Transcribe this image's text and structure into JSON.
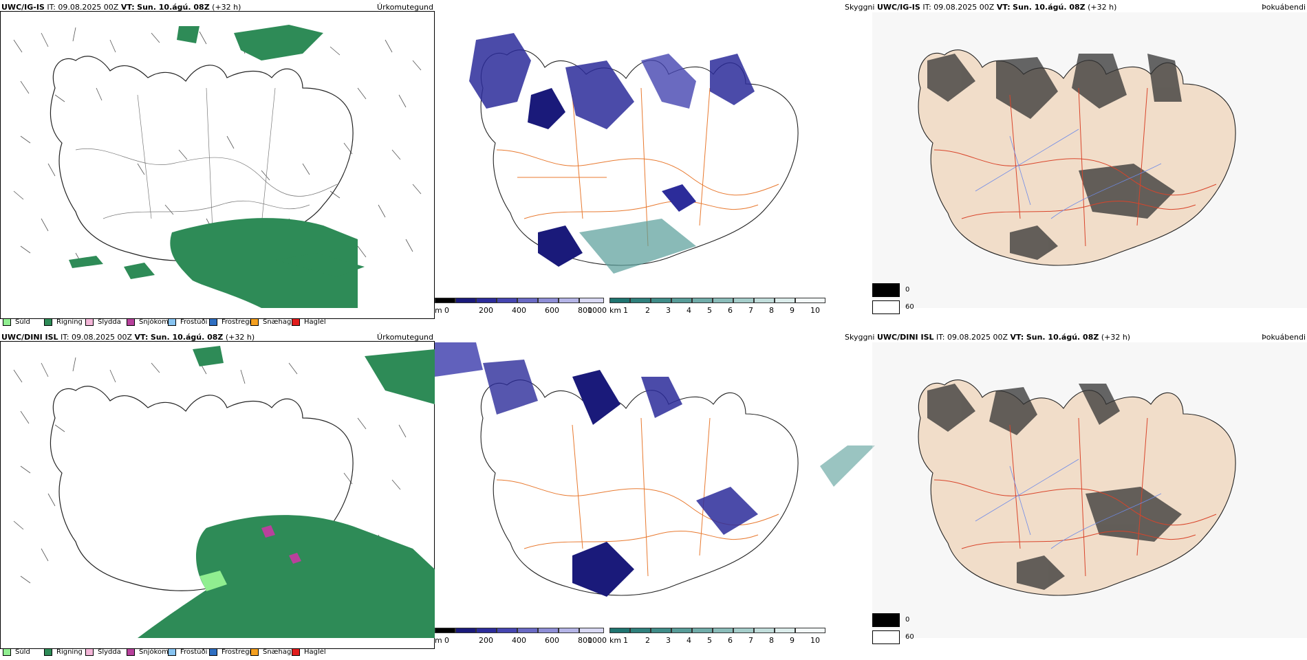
{
  "panels": [
    {
      "model": "UWC/IG-IS",
      "it_label": "IT:",
      "it_value": "09.08.2025 00Z",
      "vt_label": "VT:",
      "vt_value": "Sun. 10.ágú. 08Z",
      "lead": "(+32 h)",
      "right_label": "Úrkomutegund"
    },
    {
      "model": "UWC/IG-IS",
      "it_label": "IT:",
      "it_value": "09.08.2025 00Z",
      "vt_label": "VT:",
      "vt_value": "Sun. 10.ágú. 08Z",
      "lead": "(+32 h)",
      "left_label": "Skyggni",
      "right_label": "Þokuábendi"
    },
    {
      "model": "UWC/DINI ISL",
      "it_label": "IT:",
      "it_value": "09.08.2025 00Z",
      "vt_label": "VT:",
      "vt_value": "Sun. 10.ágú. 08Z",
      "lead": "(+32 h)",
      "right_label": "Úrkomutegund"
    },
    {
      "model": "UWC/DINI ISL",
      "it_label": "IT:",
      "it_value": "09.08.2025 00Z",
      "vt_label": "VT:",
      "vt_value": "Sun. 10.ágú. 08Z",
      "lead": "(+32 h)",
      "left_label": "Skyggni",
      "right_label": "Þokuábendi"
    }
  ],
  "precip_legend": [
    {
      "label": "Súld",
      "color": "#90ee90"
    },
    {
      "label": "Rigning",
      "color": "#2e8b57"
    },
    {
      "label": "Slydda",
      "color": "#f4b6d8"
    },
    {
      "label": "Snjókoma",
      "color": "#b8419c"
    },
    {
      "label": "Frostúði",
      "color": "#87c3f0"
    },
    {
      "label": "Frostregn",
      "color": "#2f6fc2"
    },
    {
      "label": "Snæhagl",
      "color": "#f4a020"
    },
    {
      "label": "Haglél",
      "color": "#e11c1c"
    }
  ],
  "elevation_bar": {
    "unit": "m",
    "ticks": [
      "0",
      "200",
      "400",
      "600",
      "800",
      "1000"
    ],
    "colors": [
      "#000000",
      "#1a1a7a",
      "#2c2c9a",
      "#4545b0",
      "#6a6ac4",
      "#8e8ed6",
      "#b4b4e6",
      "#d8d8f2"
    ]
  },
  "visibility_bar": {
    "unit": "km",
    "ticks": [
      "1",
      "2",
      "3",
      "4",
      "5",
      "6",
      "7",
      "8",
      "9",
      "10"
    ],
    "colors": [
      "#1f7470",
      "#2f807c",
      "#3f8c88",
      "#579c98",
      "#70aca9",
      "#8abcb9",
      "#a5cdca",
      "#c1dddb",
      "#dbeceb",
      "#f3f9f9"
    ]
  },
  "fog_scale": {
    "dark_value": "0",
    "light_value": "60"
  },
  "colors": {
    "rain_green": "#2e8b57",
    "land_tan": "#f1ddc9",
    "road_orange": "#e8792f",
    "road_red": "#d9442a",
    "river_blue": "#6f8be8"
  }
}
